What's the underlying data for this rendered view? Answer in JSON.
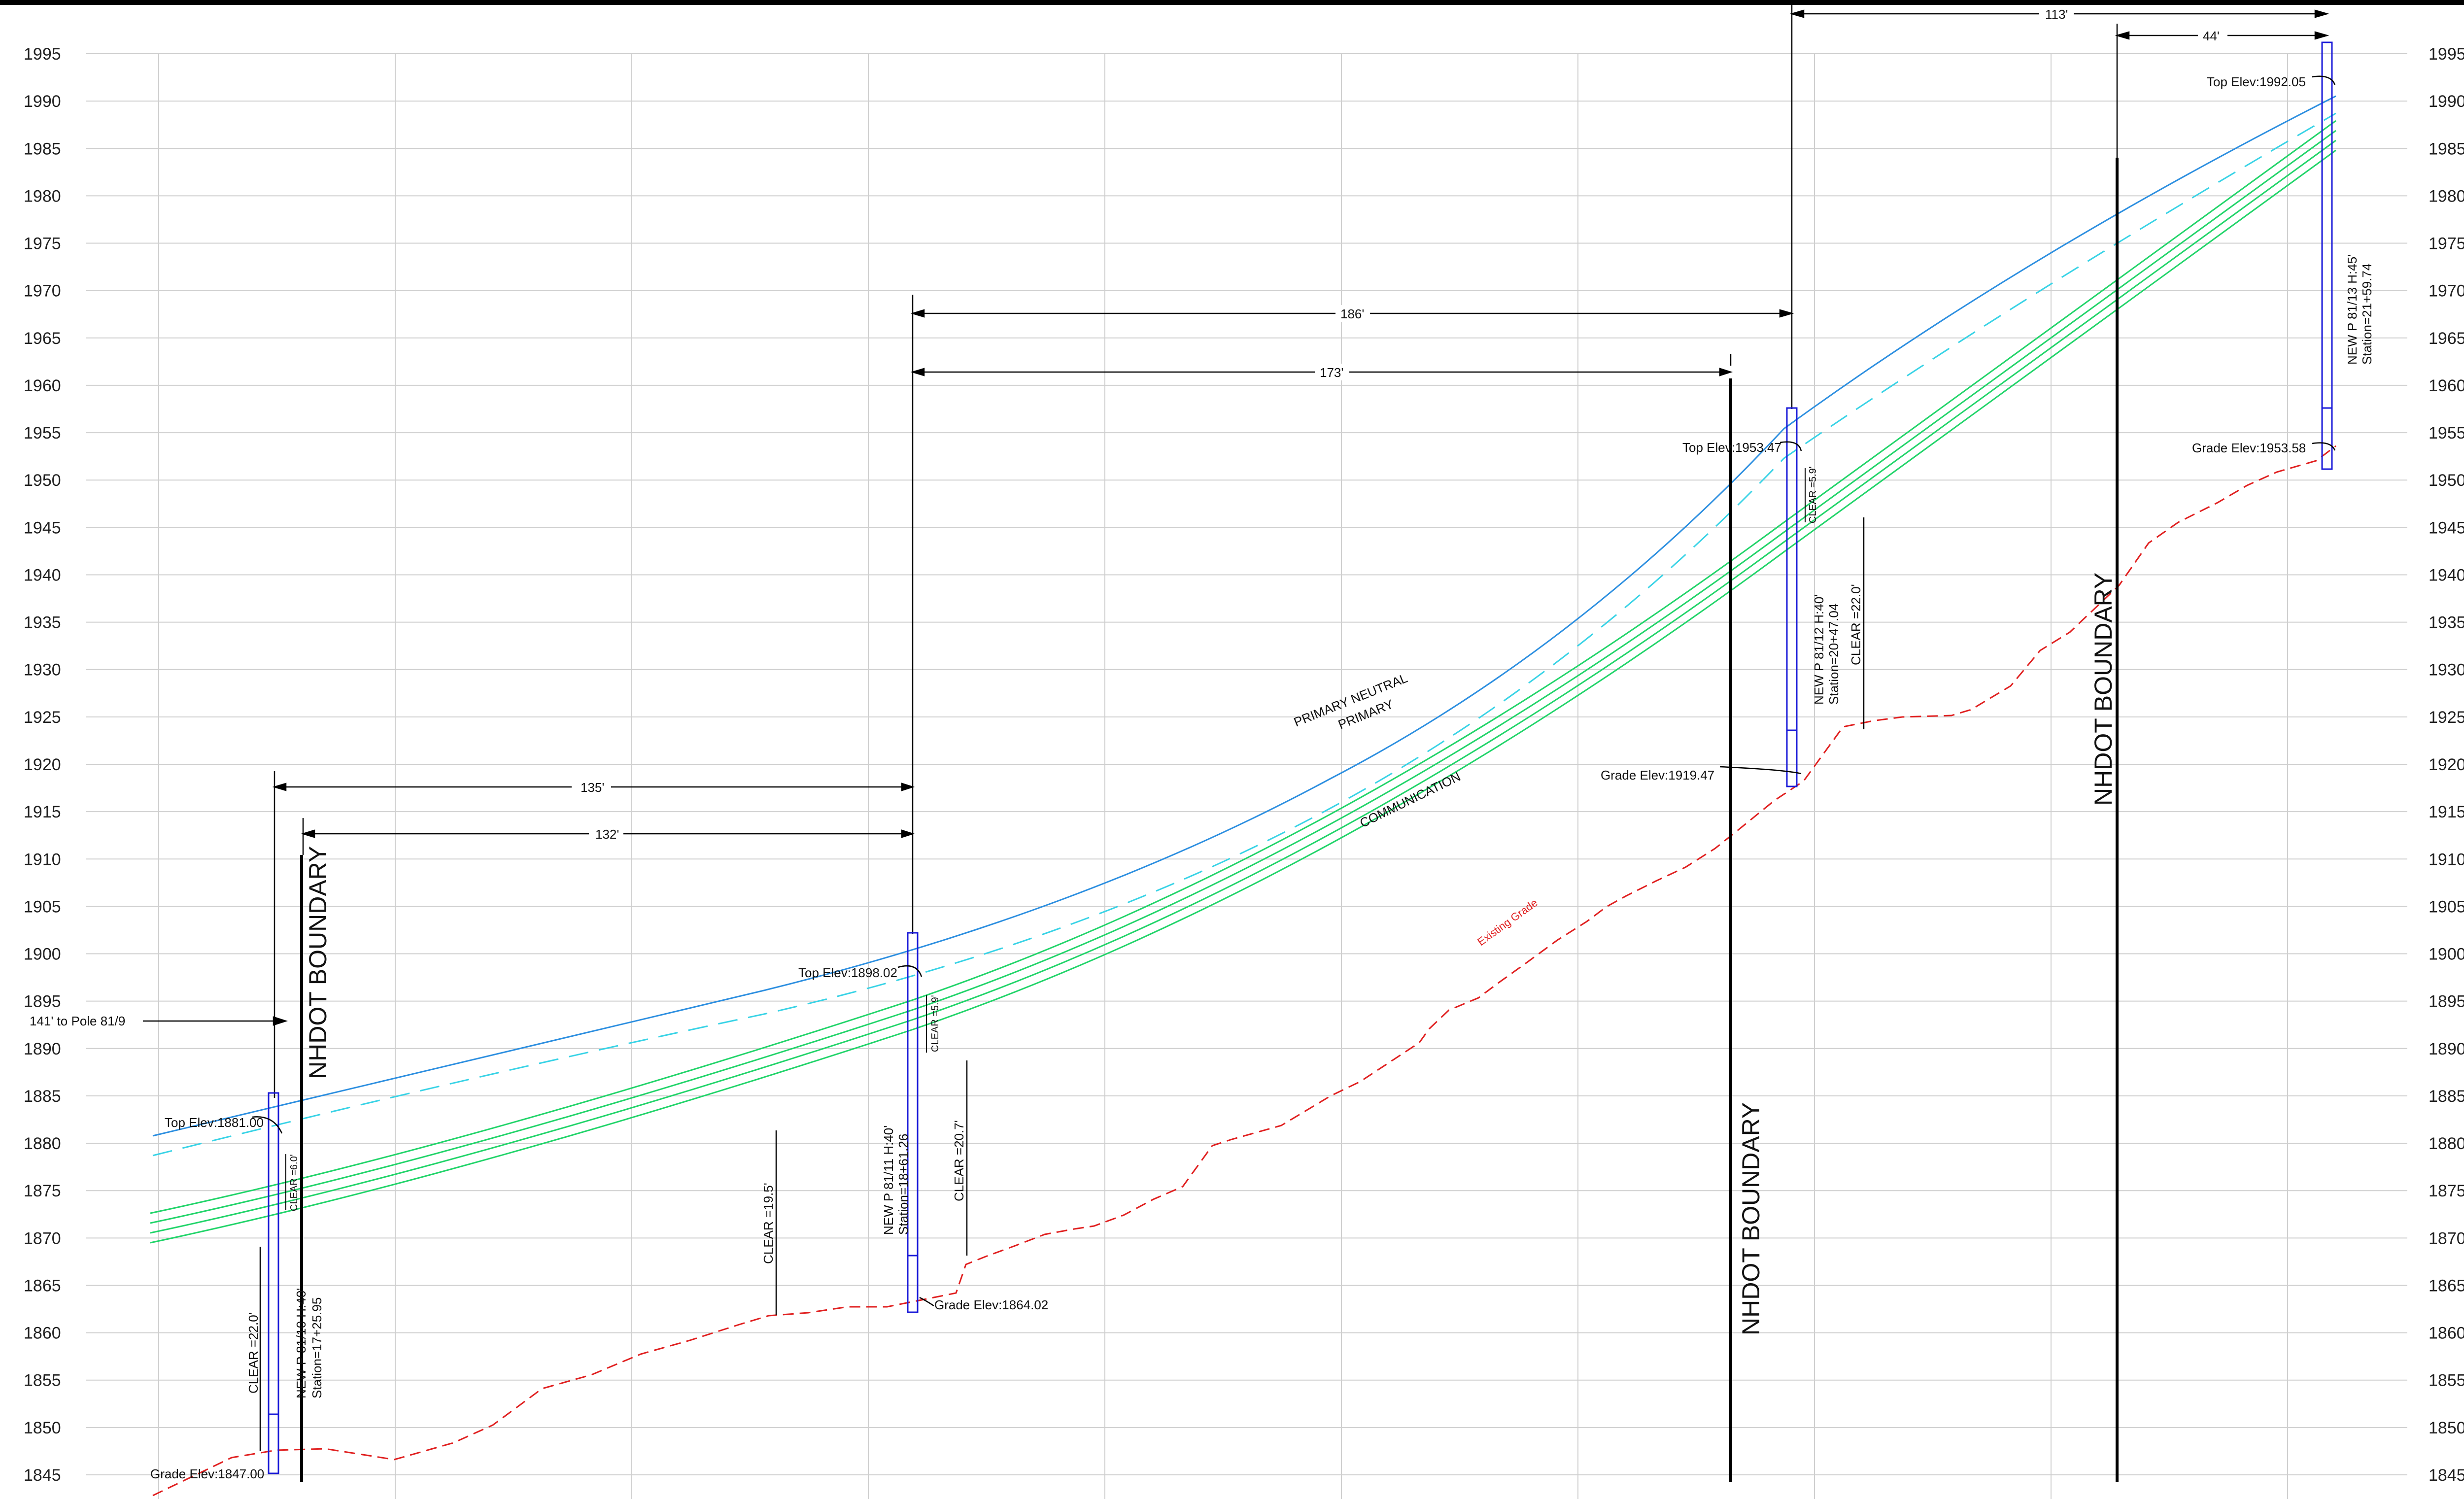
{
  "profile": {
    "elev_min": 1845,
    "elev_max": 1995,
    "elev_step": 5,
    "y_axis_ticks": [
      1995,
      1990,
      1985,
      1980,
      1975,
      1970,
      1965,
      1960,
      1955,
      1950,
      1945,
      1940,
      1935,
      1930,
      1925,
      1920,
      1915,
      1910,
      1905,
      1900,
      1895,
      1890,
      1885,
      1880,
      1875,
      1870,
      1865,
      1860,
      1855,
      1850,
      1845
    ]
  },
  "poles": [
    {
      "id": "pole-81-10",
      "top_elev": "Top Elev:1881.00",
      "grade_elev": "Grade Elev:1847.00",
      "clear_attach": "CLEAR =6.0'",
      "clear_ground": "CLEAR =22.0'",
      "label_1": "NEW P 81/10 H:40'",
      "label_2": "Station=17+25.95"
    },
    {
      "id": "pole-81-11",
      "top_elev": "Top Elev:1898.02",
      "grade_elev": "Grade Elev:1864.02",
      "clear_attach": "CLEAR =5.9'",
      "clear_ground": "CLEAR =20.7'",
      "label_1": "NEW P 81/11 H:40'",
      "label_2": "Station=18+61.26"
    },
    {
      "id": "pole-81-12",
      "top_elev": "Top Elev:1953.47",
      "grade_elev": "Grade Elev:1919.47",
      "clear_attach": "CLEAR =5.9'",
      "clear_ground": "CLEAR =22.0'",
      "label_1": "NEW P 81/12 H:40'",
      "label_2": "Station=20+47.04"
    },
    {
      "id": "pole-81-13",
      "top_elev": "Top Elev:1992.05",
      "grade_elev": "Grade Elev:1953.58",
      "label_1": "NEW P 81/13 H:45'",
      "label_2": "Station=21+59.74"
    }
  ],
  "midspan_clear": "CLEAR =19.5'",
  "dimensions": {
    "to_prev_pole": "141' to Pole 81/9",
    "span_135": "135'",
    "span_132": "132'",
    "span_186": "186'",
    "span_173": "173'",
    "span_113": "113'",
    "span_44": "44'"
  },
  "boundary_label": "NHDOT BOUNDARY",
  "wire_labels": {
    "primary_neutral": "PRIMARY NEUTRAL",
    "primary": "PRIMARY",
    "communication": "COMMUNICATION",
    "existing_grade": "Existing Grade"
  },
  "colors": {
    "grid": "#cfcfcf",
    "primary_neutral": "#2d8fe0",
    "primary": "#39d3e6",
    "communication": "#22d46a",
    "existing_grade": "#e02020",
    "pole": "#1a1ad8"
  }
}
